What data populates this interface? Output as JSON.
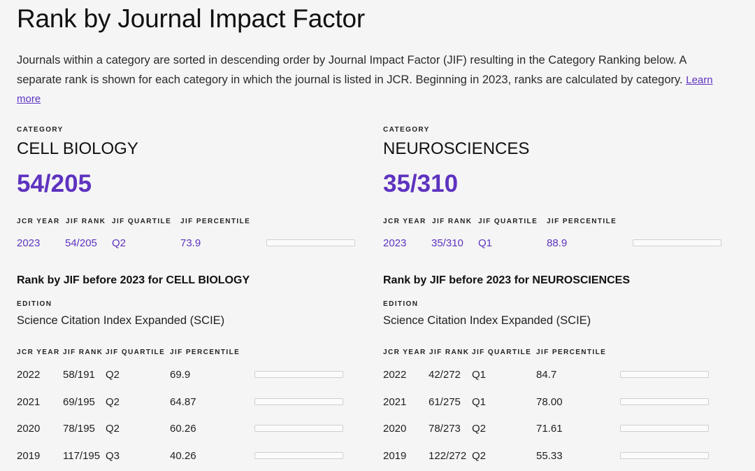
{
  "page": {
    "title": "Rank by Journal Impact Factor",
    "intro": "Journals within a category are sorted in descending order by Journal Impact Factor (JIF) resulting in the Category Ranking below. A separate rank is shown for each category in which the journal is listed in JCR. Beginning in 2023, ranks are calculated by category.",
    "learn_more": "Learn more"
  },
  "labels": {
    "category": "CATEGORY",
    "edition": "EDITION",
    "jcr_year": "JCR YEAR",
    "jif_rank": "JIF RANK",
    "jif_quartile": "JIF QUARTILE",
    "jif_percentile": "JIF PERCENTILE"
  },
  "colors": {
    "accent": "#5e33bf"
  },
  "categories": [
    {
      "name": "CELL BIOLOGY",
      "rank": "54/205",
      "current": {
        "year": "2023",
        "rank": "54/205",
        "quartile": "Q2",
        "percentile": "73.9"
      },
      "history_title": "Rank by JIF before 2023 for CELL BIOLOGY",
      "edition": "Science Citation Index Expanded (SCIE)",
      "history": [
        {
          "year": "2022",
          "rank": "58/191",
          "quartile": "Q2",
          "percentile": "69.9"
        },
        {
          "year": "2021",
          "rank": "69/195",
          "quartile": "Q2",
          "percentile": "64.87"
        },
        {
          "year": "2020",
          "rank": "78/195",
          "quartile": "Q2",
          "percentile": "60.26"
        },
        {
          "year": "2019",
          "rank": "117/195",
          "quartile": "Q3",
          "percentile": "40.26"
        }
      ]
    },
    {
      "name": "NEUROSCIENCES",
      "rank": "35/310",
      "current": {
        "year": "2023",
        "rank": "35/310",
        "quartile": "Q1",
        "percentile": "88.9"
      },
      "history_title": "Rank by JIF before 2023 for NEUROSCIENCES",
      "edition": "Science Citation Index Expanded (SCIE)",
      "history": [
        {
          "year": "2022",
          "rank": "42/272",
          "quartile": "Q1",
          "percentile": "84.7"
        },
        {
          "year": "2021",
          "rank": "61/275",
          "quartile": "Q1",
          "percentile": "78.00"
        },
        {
          "year": "2020",
          "rank": "78/273",
          "quartile": "Q2",
          "percentile": "71.61"
        },
        {
          "year": "2019",
          "rank": "122/272",
          "quartile": "Q2",
          "percentile": "55.33"
        }
      ]
    }
  ]
}
